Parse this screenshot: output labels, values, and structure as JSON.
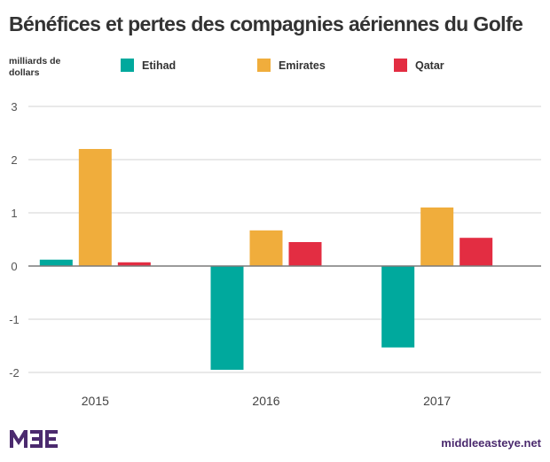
{
  "chart_data": {
    "type": "bar",
    "title": "Bénéfices et pertes des compagnies aériennes du Golfe",
    "ylabel": "milliards de dollars",
    "xlabel": "",
    "categories": [
      "2015",
      "2016",
      "2017"
    ],
    "series": [
      {
        "name": "Etihad",
        "color": "#00a99d",
        "values": [
          0.12,
          -1.95,
          -1.53
        ]
      },
      {
        "name": "Emirates",
        "color": "#f0ad3c",
        "values": [
          2.2,
          0.67,
          1.1
        ]
      },
      {
        "name": "Qatar",
        "color": "#e32d42",
        "values": [
          0.07,
          0.45,
          0.53
        ]
      }
    ],
    "ylim": [
      -2,
      3
    ],
    "yticks": [
      "3",
      "2",
      "1",
      "0",
      "-1",
      "-2"
    ],
    "ytick_values": [
      3,
      2,
      1,
      0,
      -1,
      -2
    ],
    "grid": true,
    "legend_position": "top"
  },
  "footer": {
    "logo_text": "MEE",
    "site": "middleeasteye.net"
  }
}
